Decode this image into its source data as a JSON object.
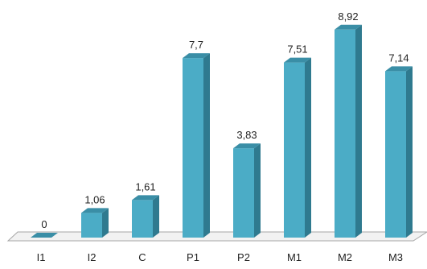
{
  "chart_data": {
    "type": "bar",
    "categories": [
      "I1",
      "I2",
      "C",
      "P1",
      "P2",
      "M1",
      "M2",
      "M3"
    ],
    "values": [
      0,
      1.06,
      1.61,
      7.7,
      3.83,
      7.51,
      8.92,
      7.14
    ],
    "data_labels": [
      "0",
      "1,06",
      "1,61",
      "7,7",
      "3,83",
      "7,51",
      "8,92",
      "7,14"
    ],
    "ylim": [
      0,
      9.5
    ],
    "grid": false,
    "legend": "none",
    "style": "3d-column"
  },
  "colors": {
    "bar_front": "#4bacc6",
    "bar_side": "#2f7a8f",
    "bar_top": "#3a8ea6",
    "floor_fill": "#f2f2f2",
    "floor_stroke": "#a6a6a6"
  }
}
